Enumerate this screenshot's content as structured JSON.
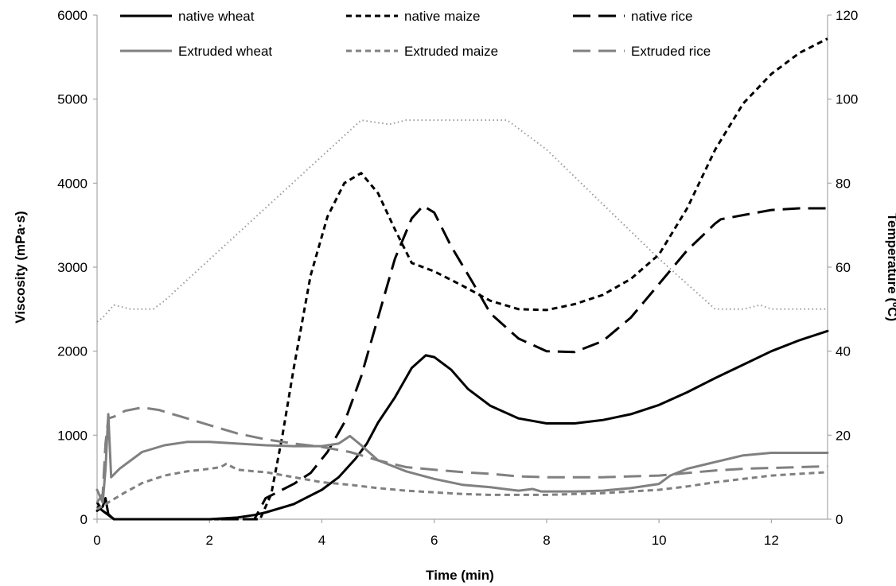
{
  "chart_data": {
    "type": "line",
    "xlabel": "Time (min)",
    "ylabel": "Viscosity  (mPa·s)",
    "y2label": "Temperature (ºC)",
    "xlim": [
      0,
      13
    ],
    "ylim": [
      0,
      6000
    ],
    "y2lim": [
      0,
      120
    ],
    "xticks": [
      "0",
      "2",
      "4",
      "6",
      "8",
      "10",
      "12"
    ],
    "yticks": [
      "0",
      "1000",
      "2000",
      "3000",
      "4000",
      "5000",
      "6000"
    ],
    "y2ticks": [
      "0",
      "20",
      "40",
      "60",
      "80",
      "100",
      "120"
    ],
    "grid": false,
    "legend_position": "top",
    "series": [
      {
        "name": "native wheat",
        "color": "#000000",
        "dash": "solid",
        "axis": "left",
        "x": [
          0,
          0.1,
          0.15,
          0.2,
          0.3,
          1,
          2,
          2.5,
          2.8,
          3,
          3.5,
          4,
          4.3,
          4.6,
          4.8,
          5,
          5.3,
          5.6,
          5.85,
          6,
          6.3,
          6.6,
          7,
          7.5,
          8,
          8.5,
          9,
          9.5,
          10,
          10.5,
          11,
          11.5,
          12,
          12.5,
          13
        ],
        "y": [
          100,
          150,
          250,
          60,
          0,
          0,
          0,
          20,
          50,
          80,
          180,
          350,
          500,
          720,
          900,
          1150,
          1450,
          1800,
          1950,
          1930,
          1780,
          1550,
          1350,
          1200,
          1140,
          1140,
          1180,
          1250,
          1360,
          1510,
          1680,
          1840,
          2000,
          2130,
          2240
        ]
      },
      {
        "name": "native maize",
        "color": "#000000",
        "dash": "7,5",
        "axis": "left",
        "x": [
          0,
          0.1,
          0.2,
          0.3,
          1,
          2,
          2.9,
          3.1,
          3.3,
          3.5,
          3.8,
          4.1,
          4.4,
          4.7,
          5,
          5.3,
          5.6,
          6,
          6.5,
          7,
          7.5,
          8,
          8.5,
          9,
          9.5,
          10,
          10.5,
          11,
          11.5,
          12,
          12.5,
          13
        ],
        "y": [
          200,
          100,
          50,
          0,
          0,
          0,
          0,
          300,
          1000,
          1800,
          2900,
          3600,
          4000,
          4120,
          3880,
          3450,
          3050,
          2950,
          2780,
          2600,
          2500,
          2490,
          2560,
          2670,
          2860,
          3150,
          3700,
          4400,
          4950,
          5300,
          5550,
          5720
        ]
      },
      {
        "name": "native rice",
        "color": "#000000",
        "dash": "22,10",
        "axis": "left",
        "x": [
          0,
          0.1,
          0.2,
          0.3,
          1,
          2,
          2.8,
          3,
          3.5,
          3.8,
          4.1,
          4.4,
          4.7,
          5,
          5.3,
          5.6,
          5.8,
          6,
          6.3,
          6.7,
          7,
          7.5,
          8,
          8.5,
          9,
          9.5,
          10,
          10.5,
          11,
          11.1,
          11.5,
          12,
          12.5,
          13
        ],
        "y": [
          150,
          100,
          50,
          0,
          0,
          0,
          0,
          250,
          420,
          550,
          800,
          1150,
          1700,
          2400,
          3100,
          3580,
          3730,
          3650,
          3250,
          2800,
          2450,
          2150,
          2000,
          1990,
          2120,
          2400,
          2800,
          3200,
          3520,
          3570,
          3620,
          3680,
          3700,
          3700
        ]
      },
      {
        "name": "Extruded wheat",
        "color": "#808080",
        "dash": "solid",
        "axis": "left",
        "x": [
          0,
          0.1,
          0.15,
          0.2,
          0.25,
          0.4,
          0.8,
          1.2,
          1.6,
          2,
          2.5,
          3,
          3.5,
          4,
          4.3,
          4.5,
          4.7,
          5,
          5.5,
          6,
          6.5,
          7,
          7.5,
          7.75,
          7.9,
          8,
          8.5,
          9,
          9.5,
          10,
          10.2,
          10.5,
          11,
          11.5,
          12,
          12.5,
          13
        ],
        "y": [
          350,
          200,
          600,
          1250,
          500,
          600,
          800,
          880,
          920,
          920,
          900,
          880,
          870,
          870,
          900,
          990,
          880,
          700,
          570,
          480,
          410,
          380,
          340,
          360,
          330,
          330,
          330,
          340,
          370,
          420,
          520,
          600,
          680,
          760,
          790,
          790,
          790
        ]
      },
      {
        "name": "Extruded maize",
        "color": "#808080",
        "dash": "7,5",
        "axis": "left",
        "x": [
          0,
          0.2,
          0.5,
          0.8,
          1.2,
          1.6,
          2,
          2.2,
          2.3,
          2.5,
          2.8,
          3,
          3.5,
          4,
          4.5,
          5,
          5.5,
          6,
          6.5,
          7,
          7.5,
          8,
          8.5,
          9,
          9.5,
          10,
          10.5,
          11,
          11.5,
          12,
          12.5,
          13
        ],
        "y": [
          120,
          200,
          320,
          430,
          520,
          570,
          600,
          620,
          660,
          590,
          570,
          560,
          500,
          440,
          410,
          370,
          340,
          320,
          300,
          290,
          290,
          290,
          300,
          310,
          330,
          350,
          390,
          440,
          480,
          520,
          540,
          560
        ]
      },
      {
        "name": "Extruded rice",
        "color": "#808080",
        "dash": "22,10",
        "axis": "left",
        "x": [
          0,
          0.1,
          0.15,
          0.2,
          0.3,
          0.5,
          0.8,
          1.1,
          1.5,
          2,
          2.5,
          3,
          3.5,
          4,
          4.5,
          5,
          5.5,
          6,
          6.5,
          7,
          7.5,
          8,
          8.5,
          9,
          9.5,
          10,
          10.5,
          11,
          11.5,
          12,
          12.5,
          13
        ],
        "y": [
          200,
          300,
          900,
          1200,
          1220,
          1290,
          1330,
          1300,
          1220,
          1120,
          1020,
          950,
          900,
          860,
          800,
          700,
          620,
          590,
          560,
          540,
          510,
          500,
          500,
          500,
          510,
          520,
          550,
          580,
          600,
          610,
          620,
          630
        ]
      },
      {
        "name": "Temperature",
        "color": "#9a9a9a",
        "dash": "1.5,3.5",
        "axis": "right",
        "x": [
          0,
          0.1,
          0.3,
          0.6,
          1,
          1.2,
          4.7,
          5.2,
          5.5,
          6,
          7.3,
          8,
          9,
          10,
          11,
          11.2,
          11.5,
          11.8,
          12,
          13
        ],
        "y": [
          47,
          48,
          51,
          50,
          50,
          52,
          95,
          94,
          95,
          95,
          95,
          88,
          75,
          62,
          50,
          50,
          50,
          51,
          50,
          50
        ]
      }
    ]
  }
}
